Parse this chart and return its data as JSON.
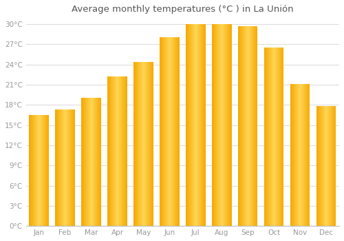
{
  "months": [
    "Jan",
    "Feb",
    "Mar",
    "Apr",
    "May",
    "Jun",
    "Jul",
    "Aug",
    "Sep",
    "Oct",
    "Nov",
    "Dec"
  ],
  "temperatures": [
    16.5,
    17.3,
    19.1,
    22.2,
    24.4,
    28.1,
    30.0,
    30.0,
    29.7,
    26.5,
    21.1,
    17.8
  ],
  "bar_color_center": "#FFD555",
  "bar_color_edge": "#F5A800",
  "background_color": "#ffffff",
  "grid_color": "#dddddd",
  "title": "Average monthly temperatures (°C ) in La Unión",
  "title_fontsize": 9.5,
  "title_color": "#555555",
  "tick_label_color": "#999999",
  "ylim": [
    0,
    31
  ],
  "yticks": [
    0,
    3,
    6,
    9,
    12,
    15,
    18,
    21,
    24,
    27,
    30
  ],
  "ytick_labels": [
    "0°C",
    "3°C",
    "6°C",
    "9°C",
    "12°C",
    "15°C",
    "18°C",
    "21°C",
    "24°C",
    "27°C",
    "30°C"
  ],
  "bar_width": 0.75,
  "figsize": [
    5.0,
    3.5
  ],
  "dpi": 100
}
